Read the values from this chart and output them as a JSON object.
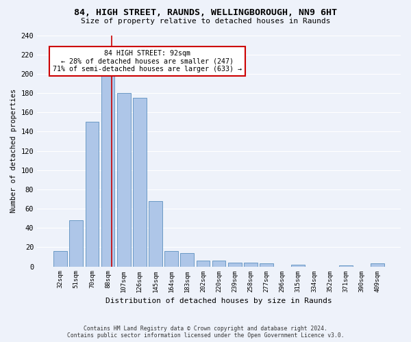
{
  "title_line1": "84, HIGH STREET, RAUNDS, WELLINGBOROUGH, NN9 6HT",
  "title_line2": "Size of property relative to detached houses in Raunds",
  "xlabel": "Distribution of detached houses by size in Raunds",
  "ylabel": "Number of detached properties",
  "categories": [
    "32sqm",
    "51sqm",
    "70sqm",
    "88sqm",
    "107sqm",
    "126sqm",
    "145sqm",
    "164sqm",
    "183sqm",
    "202sqm",
    "220sqm",
    "239sqm",
    "258sqm",
    "277sqm",
    "296sqm",
    "315sqm",
    "334sqm",
    "352sqm",
    "371sqm",
    "390sqm",
    "409sqm"
  ],
  "values": [
    16,
    48,
    150,
    202,
    180,
    175,
    68,
    16,
    14,
    6,
    6,
    4,
    4,
    3,
    0,
    2,
    0,
    0,
    1,
    0,
    3
  ],
  "bar_color": "#aec6e8",
  "bar_edge_color": "#5b8fbe",
  "annotation_text_line1": "84 HIGH STREET: 92sqm",
  "annotation_text_line2": "← 28% of detached houses are smaller (247)",
  "annotation_text_line3": "71% of semi-detached houses are larger (633) →",
  "red_line_color": "#cc0000",
  "annotation_box_facecolor": "#ffffff",
  "annotation_box_edgecolor": "#cc0000",
  "footer_line1": "Contains HM Land Registry data © Crown copyright and database right 2024.",
  "footer_line2": "Contains public sector information licensed under the Open Government Licence v3.0.",
  "ylim": [
    0,
    240
  ],
  "yticks": [
    0,
    20,
    40,
    60,
    80,
    100,
    120,
    140,
    160,
    180,
    200,
    220,
    240
  ],
  "background_color": "#eef2fa",
  "grid_color": "#ffffff",
  "red_line_x": 3.22
}
